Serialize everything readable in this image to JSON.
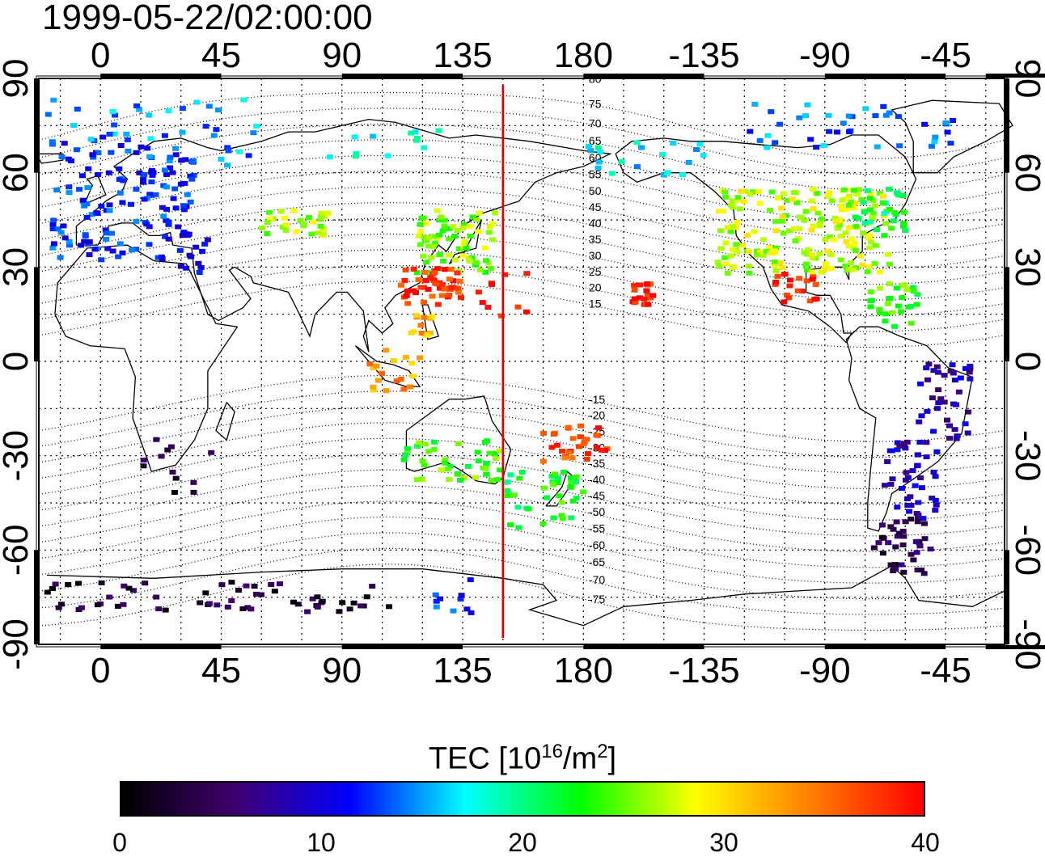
{
  "timestamp": "1999-05-22/02:00:00",
  "map": {
    "projection": "equirectangular",
    "lon_range": [
      -23,
      337
    ],
    "lat_range": [
      -90,
      90
    ],
    "top_lon_labels": [
      "0",
      "45",
      "90",
      "135",
      "180",
      "-135",
      "-90",
      "-45"
    ],
    "bottom_lon_labels": [
      "0",
      "45",
      "90",
      "135",
      "180",
      "-135",
      "-90",
      "-45"
    ],
    "left_lat_labels": [
      "90",
      "60",
      "30",
      "0",
      "-30",
      "-60",
      "-90"
    ],
    "right_lat_labels": [
      "90",
      "60",
      "30",
      "0",
      "-30",
      "-60",
      "-90"
    ],
    "label_lons": [
      0,
      45,
      90,
      135,
      180,
      225,
      270,
      315
    ],
    "label_lats": [
      90,
      60,
      30,
      0,
      -30,
      -60,
      -90
    ],
    "graticule_step_deg": 15,
    "marker_meridian_lon": 150,
    "marker_meridian_color": "#dd0000",
    "magnetic_latitude_labels": [
      "80",
      "75",
      "70",
      "65",
      "60",
      "55",
      "50",
      "45",
      "40",
      "35",
      "30",
      "25",
      "20",
      "15",
      "-15",
      "-20",
      "-25",
      "-30",
      "-35",
      "-40",
      "-45",
      "-50",
      "-55",
      "-60",
      "-65",
      "-70",
      "-75"
    ],
    "magnetic_latitude_values": [
      80,
      75,
      70,
      65,
      60,
      55,
      50,
      45,
      40,
      35,
      30,
      25,
      20,
      15,
      -15,
      -20,
      -25,
      -30,
      -35,
      -40,
      -45,
      -50,
      -55,
      -60,
      -65,
      -70,
      -75
    ]
  },
  "tec_clusters": [
    {
      "region": "europe",
      "lon": [
        -18,
        35
      ],
      "lat": [
        32,
        72
      ],
      "tec": 12,
      "n": 140
    },
    {
      "region": "scandinavia",
      "lon": [
        -20,
        60
      ],
      "lat": [
        62,
        84
      ],
      "tec": 15,
      "n": 40
    },
    {
      "region": "mediterranean",
      "lon": [
        28,
        40
      ],
      "lat": [
        28,
        42
      ],
      "tec": 10,
      "n": 14
    },
    {
      "region": "middle-east",
      "lon": [
        60,
        85
      ],
      "lat": [
        40,
        48
      ],
      "tec": 26,
      "n": 30
    },
    {
      "region": "siberia",
      "lon": [
        85,
        130
      ],
      "lat": [
        65,
        75
      ],
      "tec": 17,
      "n": 12
    },
    {
      "region": "japan-korea",
      "lon": [
        118,
        148
      ],
      "lat": [
        28,
        48
      ],
      "tec": 26,
      "n": 70
    },
    {
      "region": "china-south",
      "lon": [
        112,
        135
      ],
      "lat": [
        18,
        30
      ],
      "tec": 38,
      "n": 50
    },
    {
      "region": "west-pacific",
      "lon": [
        140,
        160
      ],
      "lat": [
        10,
        30
      ],
      "tec": 39,
      "n": 10
    },
    {
      "region": "philippines",
      "lon": [
        115,
        125
      ],
      "lat": [
        5,
        15
      ],
      "tec": 32,
      "n": 12
    },
    {
      "region": "indonesia",
      "lon": [
        100,
        120
      ],
      "lat": [
        -10,
        5
      ],
      "tec": 33,
      "n": 18
    },
    {
      "region": "australia",
      "lon": [
        113,
        150
      ],
      "lat": [
        -38,
        -25
      ],
      "tec": 24,
      "n": 45
    },
    {
      "region": "tasman",
      "lon": [
        150,
        165
      ],
      "lat": [
        -55,
        -35
      ],
      "tec": 22,
      "n": 14
    },
    {
      "region": "new-zealand",
      "lon": [
        165,
        180
      ],
      "lat": [
        -50,
        -35
      ],
      "tec": 23,
      "n": 26
    },
    {
      "region": "south-pacific",
      "lon": [
        165,
        190
      ],
      "lat": [
        -32,
        -20
      ],
      "tec": 37,
      "n": 30
    },
    {
      "region": "hawaii",
      "lon": [
        198,
        206
      ],
      "lat": [
        18,
        25
      ],
      "tec": 39,
      "n": 20
    },
    {
      "region": "alaska",
      "lon": [
        180,
        225
      ],
      "lat": [
        58,
        70
      ],
      "tec": 17,
      "n": 20
    },
    {
      "region": "canada-north",
      "lon": [
        240,
        320
      ],
      "lat": [
        68,
        82
      ],
      "tec": 14,
      "n": 40
    },
    {
      "region": "north-america",
      "lon": [
        230,
        295
      ],
      "lat": [
        28,
        55
      ],
      "tec": 27,
      "n": 200
    },
    {
      "region": "north-america-east",
      "lon": [
        280,
        300
      ],
      "lat": [
        40,
        55
      ],
      "tec": 21,
      "n": 30
    },
    {
      "region": "mexico",
      "lon": [
        250,
        268
      ],
      "lat": [
        18,
        28
      ],
      "tec": 39,
      "n": 20
    },
    {
      "region": "caribbean",
      "lon": [
        285,
        305
      ],
      "lat": [
        10,
        25
      ],
      "tec": 24,
      "n": 30
    },
    {
      "region": "brazil",
      "lon": [
        305,
        325
      ],
      "lat": [
        -25,
        0
      ],
      "tec": 8,
      "n": 40
    },
    {
      "region": "argentina",
      "lon": [
        292,
        312
      ],
      "lat": [
        -50,
        -25
      ],
      "tec": 9,
      "n": 45
    },
    {
      "region": "patagonia",
      "lon": [
        288,
        310
      ],
      "lat": [
        -68,
        -50
      ],
      "tec": 4,
      "n": 40
    },
    {
      "region": "antarctica",
      "lon": [
        -20,
        108
      ],
      "lat": [
        -80,
        -70
      ],
      "tec": 3,
      "n": 60
    },
    {
      "region": "antarctica-east",
      "lon": [
        120,
        150
      ],
      "lat": [
        -80,
        -68
      ],
      "tec": 12,
      "n": 10
    },
    {
      "region": "africa-south",
      "lon": [
        15,
        45
      ],
      "lat": [
        -48,
        -24
      ],
      "tec": 3,
      "n": 12
    }
  ],
  "colorbar": {
    "title": "TEC  [10",
    "title_exp": "16",
    "title_mid": "/m",
    "title_exp2": "2",
    "title_end": "]",
    "min": 0,
    "max": 40,
    "tick_values": [
      0,
      10,
      20,
      30,
      40
    ],
    "tick_labels": [
      "0",
      "10",
      "20",
      "30",
      "40"
    ],
    "colors": [
      "#000000",
      "#400070",
      "#0000ff",
      "#00ffff",
      "#00ff00",
      "#ffff00",
      "#ff8000",
      "#ff0000"
    ]
  }
}
